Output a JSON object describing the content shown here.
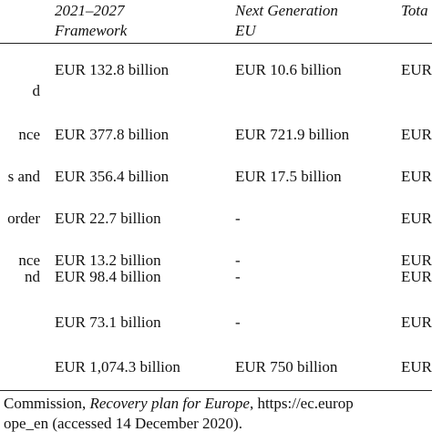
{
  "table": {
    "header": [
      [
        "2021–2027",
        "Framework"
      ],
      [
        "Next Generation",
        "EU"
      ],
      [
        "Tota"
      ]
    ],
    "rows": [
      {
        "label": "d",
        "cells": [
          "EUR 132.8 billion",
          "EUR 10.6 billion",
          "EUR"
        ]
      },
      {
        "label": "nce",
        "cells": [
          "EUR 377.8 billion",
          "EUR 721.9 billion",
          "EUR"
        ]
      },
      {
        "label": "s and",
        "cells": [
          "EUR 356.4 billion",
          "EUR 17.5 billion",
          "EUR"
        ]
      },
      {
        "label": "order",
        "cells": [
          "EUR 22.7 billion",
          "-",
          "EUR"
        ]
      },
      {
        "label": "nce",
        "cells": [
          "EUR 13.2 billion",
          "-",
          "EUR"
        ]
      },
      {
        "label": "nd",
        "cells": [
          "EUR 98.4 billion",
          "-",
          "EUR"
        ]
      },
      {
        "cells": [
          "EUR 73.1 billion",
          "-",
          "EUR"
        ]
      },
      {
        "cells": [
          "EUR 1,074.3 billion",
          "EUR 750 billion",
          "EUR"
        ]
      }
    ]
  },
  "footnote": {
    "line1": [
      "Commission, ",
      "Recovery plan for Europe",
      ", https://ec.europ"
    ],
    "line2": "ope_en (accessed 14 December 2020)."
  }
}
